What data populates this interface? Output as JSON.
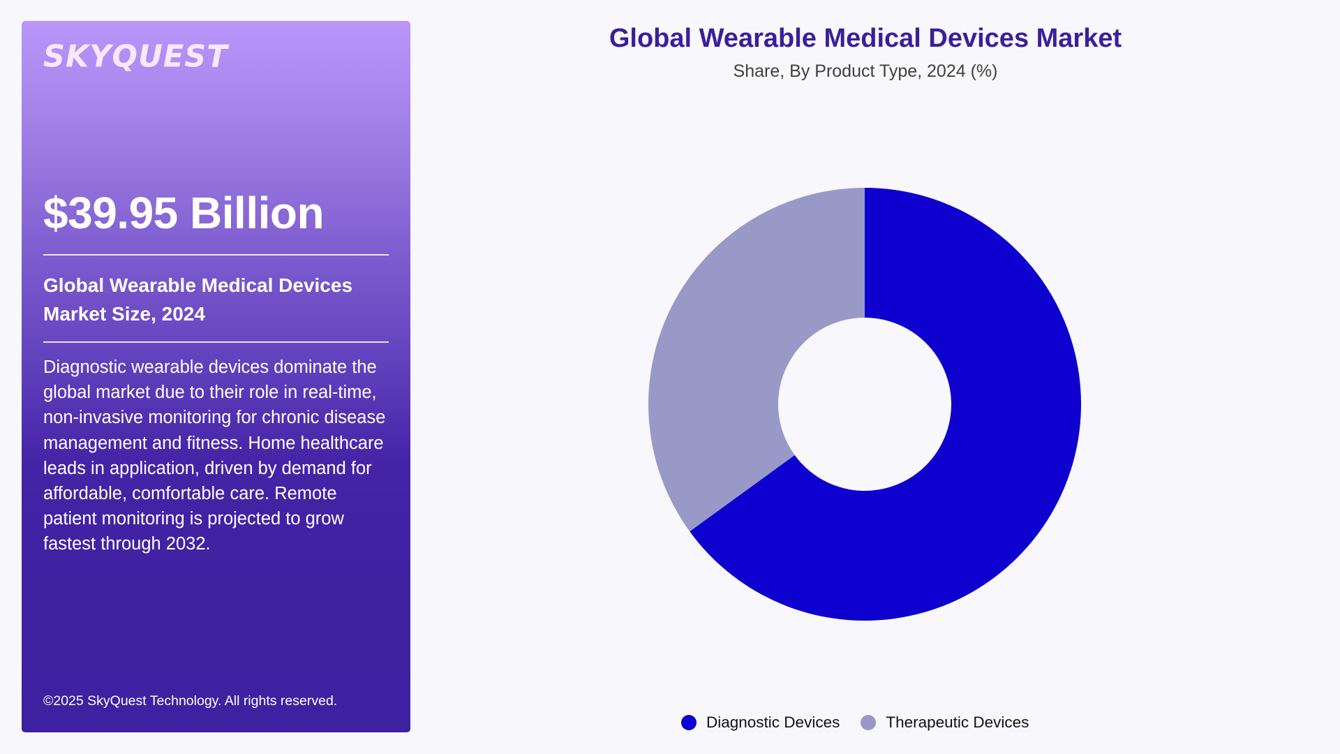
{
  "panel": {
    "logo": "SKYQUEST",
    "market_value": "$39.95 Billion",
    "heading": "Global Wearable Medical Devices Market Size, 2024",
    "description": "Diagnostic wearable devices dominate the global market due to their role in real-time, non-invasive monitoring for chronic disease management and fitness. Home healthcare leads in application, driven by demand for affordable, comfortable care. Remote patient monitoring is projected to grow fastest through 2032.",
    "copyright": "©2025 SkyQuest Technology. All rights reserved."
  },
  "chart": {
    "title": "Global Wearable Medical Devices Market",
    "subtitle": "Share, By Product Type, 2024 (%)"
  },
  "legend": [
    {
      "label": "Diagnostic Devices",
      "color": "#0E00CE"
    },
    {
      "label": "Therapeutic Devices",
      "color": "#9999C8"
    }
  ],
  "colors": {
    "accent": "#3A1F9A",
    "diagnostic": "#0E00CE",
    "therapeutic": "#9999C8",
    "background": "#F8F7FB"
  },
  "chart_data": {
    "type": "pie",
    "variant": "donut",
    "title": "Global Wearable Medical Devices Market",
    "subtitle": "Share, By Product Type, 2024 (%)",
    "categories": [
      "Diagnostic Devices",
      "Therapeutic Devices"
    ],
    "values": [
      65,
      35
    ],
    "colors": [
      "#0E00CE",
      "#9999C8"
    ],
    "start_angle_deg": 0,
    "direction": "clockwise",
    "legend_position": "bottom",
    "data_labels": false
  }
}
